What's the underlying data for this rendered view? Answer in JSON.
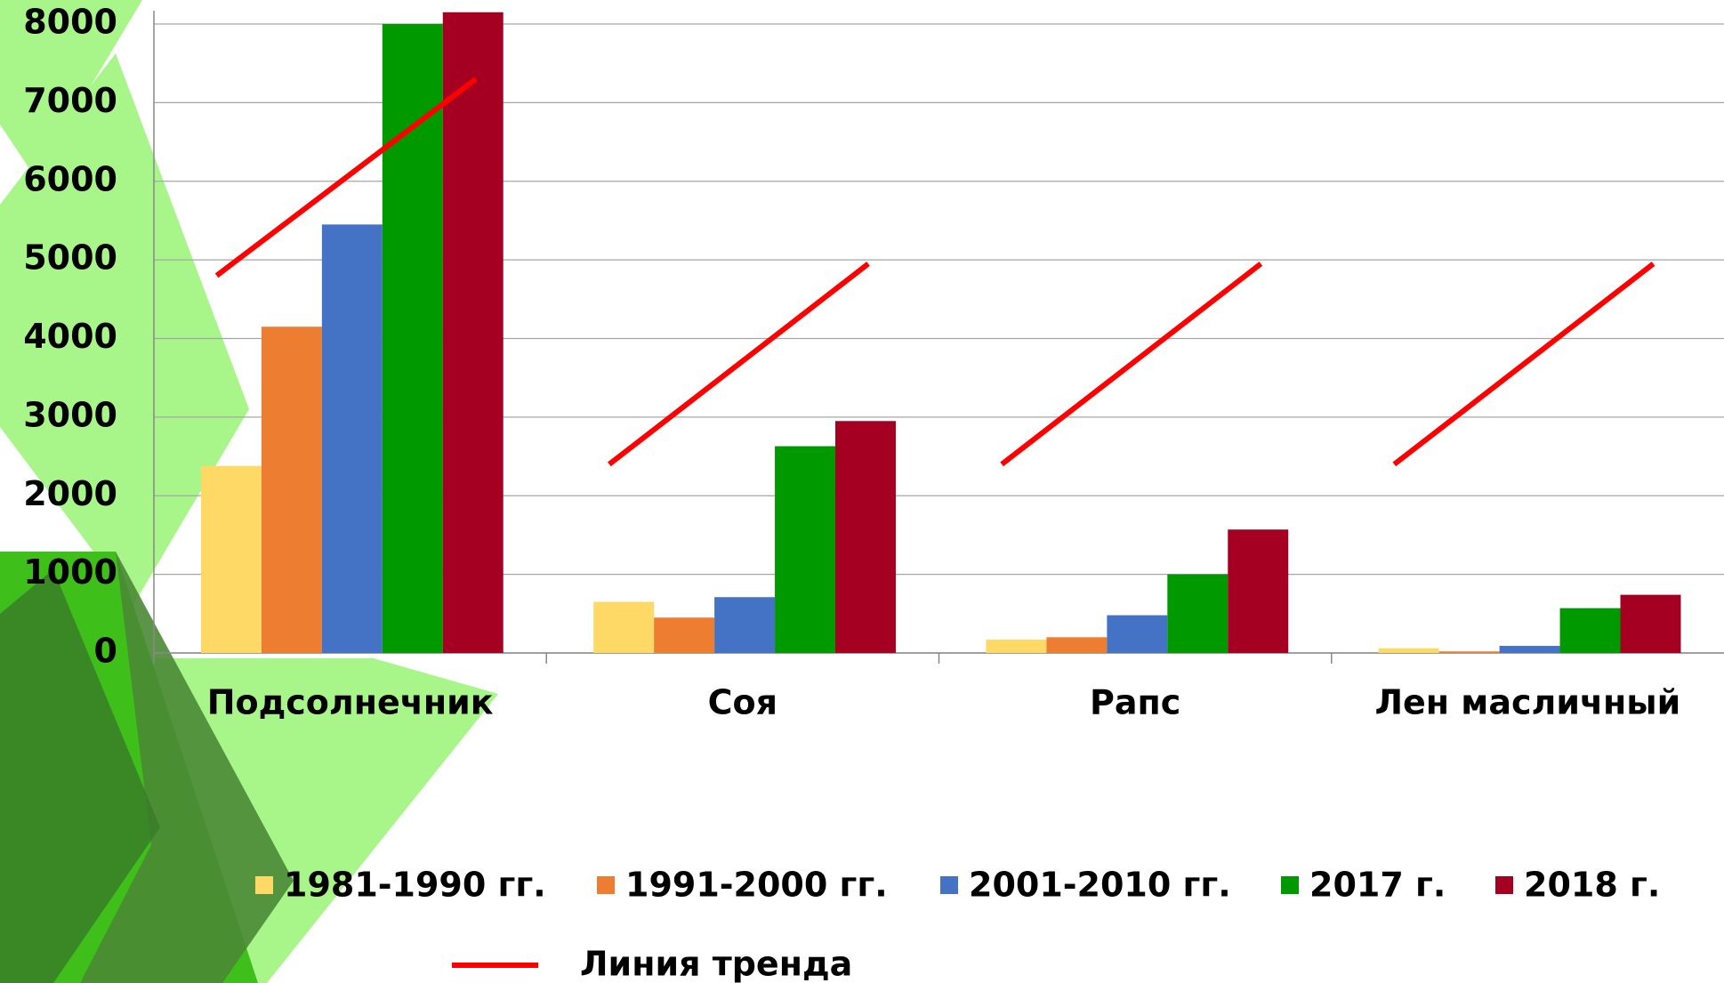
{
  "chart_data": {
    "type": "bar",
    "categories": [
      "Подсолнечник",
      "Соя",
      "Рапс",
      "Лен масличный"
    ],
    "series": [
      {
        "name": "1981-1990 гг.",
        "color": "#ffd966",
        "values": [
          2380,
          650,
          170,
          60
        ]
      },
      {
        "name": "1991-2000 гг.",
        "color": "#ed7d31",
        "values": [
          4150,
          450,
          200,
          20
        ]
      },
      {
        "name": "2001-2010 гг.",
        "color": "#4472c4",
        "values": [
          5450,
          710,
          480,
          90
        ]
      },
      {
        "name": "2017 г.",
        "color": "#009900",
        "values": [
          8000,
          2630,
          1000,
          570
        ]
      },
      {
        "name": "2018 г.",
        "color": "#a50021",
        "values": [
          8150,
          2950,
          1570,
          740
        ]
      }
    ],
    "trend": {
      "name": "Линия тренда",
      "color": "#ff0000",
      "values": [
        [
          4800,
          7300
        ],
        [
          2400,
          4950
        ],
        [
          2400,
          4950
        ],
        [
          2400,
          4950
        ]
      ]
    },
    "ylim": [
      0,
      8000
    ],
    "yticks": [
      0,
      1000,
      2000,
      3000,
      4000,
      5000,
      6000,
      7000,
      8000
    ],
    "grid": true
  }
}
